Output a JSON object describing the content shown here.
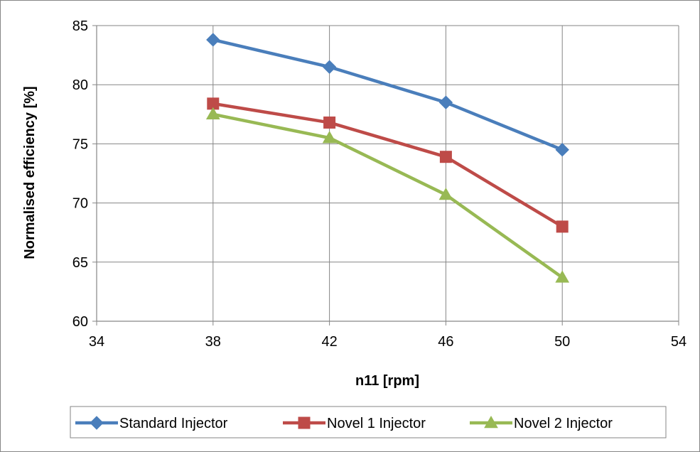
{
  "chart_data": {
    "type": "line",
    "title": "",
    "xlabel": "n11 [rpm]",
    "ylabel": "Normalised efficiency [%]",
    "xlim": [
      34,
      54
    ],
    "ylim": [
      60,
      85
    ],
    "xticks": [
      34,
      38,
      42,
      46,
      50,
      54
    ],
    "yticks": [
      60,
      65,
      70,
      75,
      80,
      85
    ],
    "grid": true,
    "legend_position": "bottom",
    "series": [
      {
        "name": "Standard Injector",
        "color": "#4a7ebb",
        "marker": "diamond",
        "x": [
          38,
          42,
          46,
          50
        ],
        "y": [
          83.8,
          81.5,
          78.5,
          74.5
        ]
      },
      {
        "name": "Novel 1 Injector",
        "color": "#be4b48",
        "marker": "square",
        "x": [
          38,
          42,
          46,
          50
        ],
        "y": [
          78.4,
          76.8,
          73.9,
          68.0
        ]
      },
      {
        "name": "Novel 2 Injector",
        "color": "#98b954",
        "marker": "triangle",
        "x": [
          38,
          42,
          46,
          50
        ],
        "y": [
          77.5,
          75.5,
          70.7,
          63.7
        ]
      }
    ]
  }
}
